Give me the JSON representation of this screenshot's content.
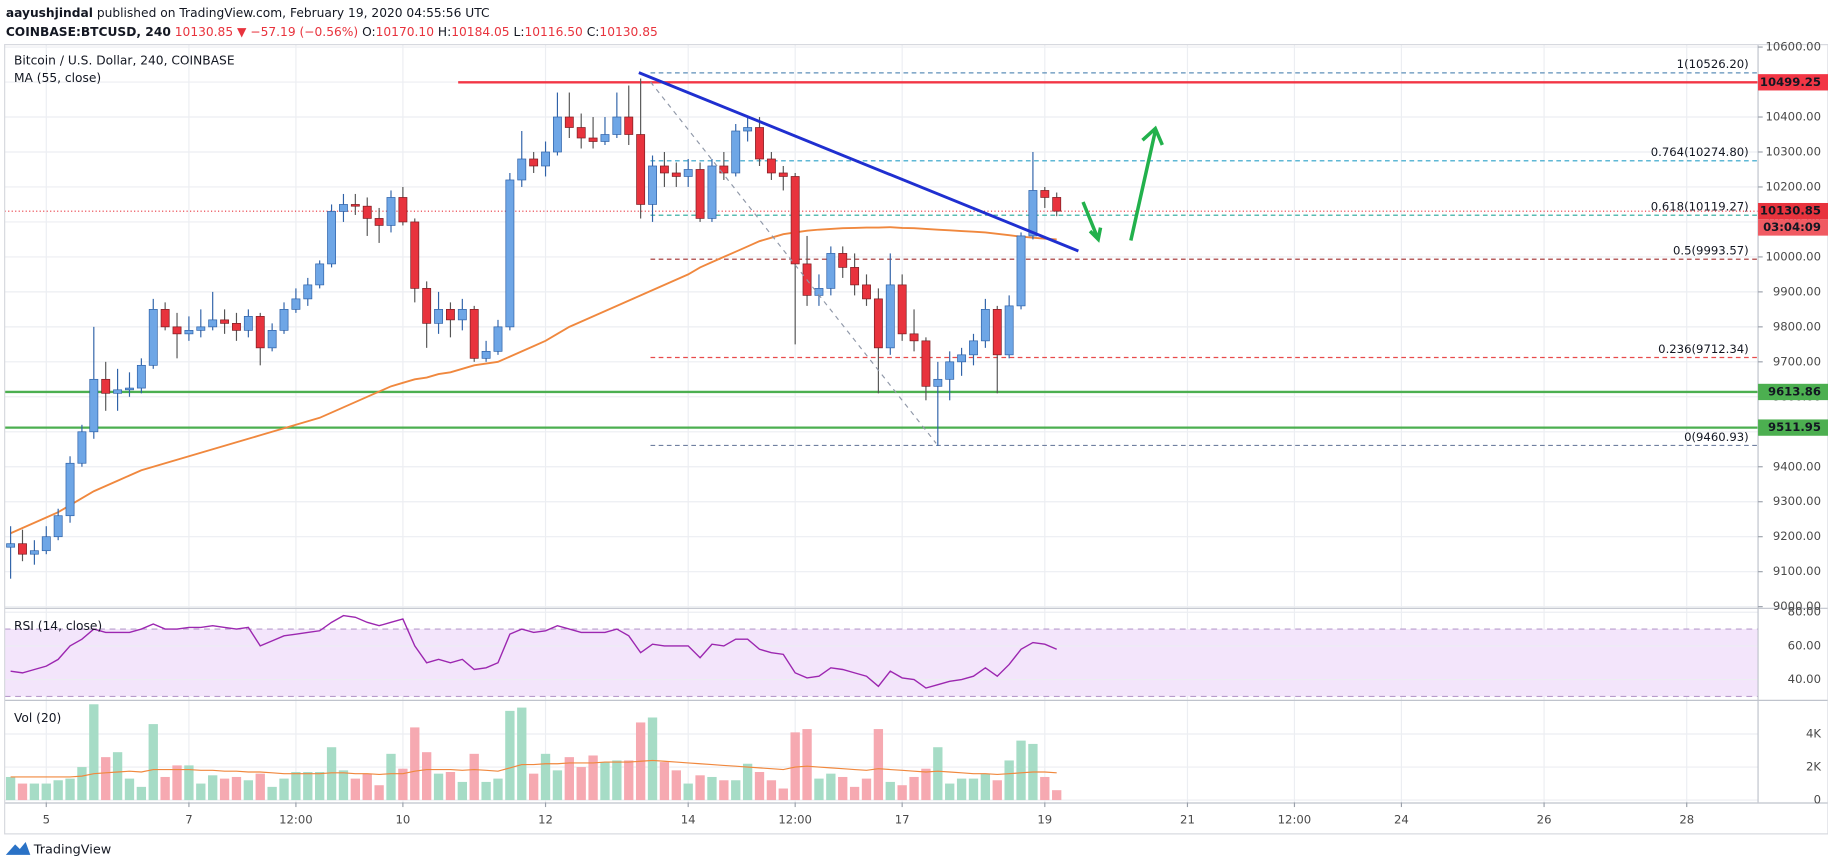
{
  "header": {
    "author": "aayushjindal",
    "published": "published on TradingView.com, February 19, 2020 04:55:56 UTC",
    "symbol": "COINBASE:BTCUSD, 240",
    "price": "10130.85",
    "change": "▼ −57.19 (−0.56%)",
    "ohlc": [
      {
        "key": "O:",
        "value": "10170.10"
      },
      {
        "key": "H:",
        "value": "10184.05"
      },
      {
        "key": "L:",
        "value": "10116.50"
      },
      {
        "key": "C:",
        "value": "10130.85"
      }
    ]
  },
  "footer": {
    "brand": "TradingView"
  },
  "chart_data": {
    "type": "candlestick",
    "title": "Bitcoin / U.S. Dollar, 240, COINBASE",
    "up_color": "#6ea6e6",
    "up_border": "#2f62a8",
    "down_color": "#e8333d",
    "grid": true,
    "x": [
      84,
      88,
      92,
      96,
      100,
      104,
      108,
      112,
      116,
      120,
      124,
      128,
      132,
      136,
      140,
      144,
      148,
      152,
      156,
      160,
      164,
      168,
      172,
      176,
      180,
      184,
      188,
      192,
      196,
      200,
      204,
      208,
      212,
      216,
      220,
      224,
      228,
      232,
      236,
      240,
      244,
      248,
      252,
      256,
      260,
      264,
      268,
      272,
      276,
      280,
      284,
      288,
      292,
      296,
      300,
      304,
      308,
      312,
      316,
      320,
      324,
      328,
      332,
      336,
      340,
      344,
      348,
      352,
      356,
      360,
      364,
      368,
      372,
      376,
      380,
      384,
      388,
      392,
      396,
      400,
      404,
      408,
      412,
      416,
      420,
      424,
      428,
      432,
      436
    ],
    "open": [
      9170,
      9180,
      9150,
      9160,
      9200,
      9260,
      9410,
      9500,
      9650,
      9610,
      9620,
      9625,
      9690,
      9850,
      9800,
      9780,
      9790,
      9800,
      9820,
      9810,
      9790,
      9830,
      9740,
      9790,
      9850,
      9880,
      9920,
      9980,
      10130,
      10150,
      10145,
      10110,
      10090,
      10170,
      10100,
      9910,
      9810,
      9850,
      9820,
      9850,
      9710,
      9730,
      9800,
      10220,
      10280,
      10260,
      10300,
      10400,
      10370,
      10340,
      10330,
      10350,
      10400,
      10350,
      10150,
      10260,
      10240,
      10230,
      10250,
      10110,
      10260,
      10240,
      10360,
      10370,
      10280,
      10240,
      10230,
      9980,
      9890,
      9910,
      10010,
      9970,
      9920,
      9880,
      9740,
      9920,
      9780,
      9760,
      9630,
      9650,
      9700,
      9720,
      9760,
      9850,
      9720,
      9860,
      10060,
      10190,
      10170.1
    ],
    "high": [
      9230,
      9220,
      9190,
      9230,
      9280,
      9430,
      9520,
      9800,
      9700,
      9680,
      9670,
      9710,
      9880,
      9870,
      9840,
      9830,
      9850,
      9900,
      9850,
      9840,
      9850,
      9840,
      9810,
      9870,
      9910,
      9940,
      9990,
      10150,
      10180,
      10180,
      10170,
      10140,
      10190,
      10200,
      10110,
      9930,
      9900,
      9870,
      9880,
      9860,
      9760,
      9820,
      10240,
      10360,
      10300,
      10330,
      10470,
      10470,
      10410,
      10400,
      10400,
      10470,
      10490,
      10510,
      10290,
      10300,
      10270,
      10280,
      10270,
      10280,
      10300,
      10380,
      10400,
      10400,
      10300,
      10260,
      10240,
      10060,
      9950,
      10030,
      10030,
      10010,
      9950,
      9910,
      10010,
      9950,
      9850,
      9770,
      9700,
      9730,
      9740,
      9780,
      9880,
      9860,
      9890,
      10070,
      10300,
      10200,
      10184.05
    ],
    "low": [
      9080,
      9130,
      9120,
      9150,
      9190,
      9240,
      9400,
      9480,
      9560,
      9560,
      9600,
      9610,
      9680,
      9790,
      9710,
      9760,
      9770,
      9790,
      9780,
      9760,
      9770,
      9690,
      9730,
      9780,
      9840,
      9860,
      9910,
      9970,
      10100,
      10120,
      10060,
      10040,
      10070,
      10090,
      9870,
      9740,
      9780,
      9770,
      9790,
      9700,
      9700,
      9720,
      9790,
      10200,
      10240,
      10230,
      10290,
      10340,
      10310,
      10310,
      10320,
      10340,
      10320,
      10110,
      10100,
      10200,
      10200,
      10200,
      10100,
      10100,
      10220,
      10230,
      10330,
      10260,
      10220,
      10190,
      9750,
      9860,
      9860,
      9890,
      9940,
      9890,
      9860,
      9610,
      9720,
      9760,
      9730,
      9590,
      9460,
      9590,
      9660,
      9690,
      9740,
      9610,
      9710,
      9850,
      10050,
      10140,
      10116.5
    ],
    "close": [
      9180,
      9150,
      9160,
      9200,
      9260,
      9410,
      9500,
      9650,
      9610,
      9620,
      9625,
      9690,
      9850,
      9800,
      9780,
      9790,
      9800,
      9820,
      9810,
      9790,
      9830,
      9740,
      9790,
      9850,
      9880,
      9920,
      9980,
      10130,
      10150,
      10145,
      10110,
      10090,
      10170,
      10100,
      9910,
      9810,
      9850,
      9820,
      9850,
      9710,
      9730,
      9800,
      10220,
      10280,
      10260,
      10300,
      10400,
      10370,
      10340,
      10330,
      10350,
      10400,
      10350,
      10150,
      10260,
      10240,
      10230,
      10250,
      10110,
      10260,
      10240,
      10360,
      10370,
      10280,
      10240,
      10230,
      9980,
      9890,
      9910,
      10010,
      9970,
      9920,
      9880,
      9740,
      9920,
      9780,
      9760,
      9630,
      9650,
      9700,
      9720,
      9760,
      9850,
      9720,
      9860,
      10060,
      10190,
      10170,
      10130.85
    ],
    "xlim": [
      82,
      672
    ],
    "xticks": [
      {
        "value": 96,
        "label": "5"
      },
      {
        "value": 144,
        "label": "7"
      },
      {
        "value": 180,
        "label": "12:00"
      },
      {
        "value": 216,
        "label": "10"
      },
      {
        "value": 264,
        "label": "12"
      },
      {
        "value": 312,
        "label": "14"
      },
      {
        "value": 348,
        "label": "12:00"
      },
      {
        "value": 384,
        "label": "17"
      },
      {
        "value": 432,
        "label": "19"
      },
      {
        "value": 480,
        "label": "21"
      },
      {
        "value": 516,
        "label": "12:00"
      },
      {
        "value": 552,
        "label": "24"
      },
      {
        "value": 600,
        "label": "26"
      },
      {
        "value": 648,
        "label": "28"
      }
    ],
    "ylim": [
      8997,
      10607
    ],
    "yticks": [
      {
        "value": 10600,
        "label": "10600.00"
      },
      {
        "value": 10500,
        "label": "10500.00"
      },
      {
        "value": 10400,
        "label": "10400.00"
      },
      {
        "value": 10300,
        "label": "10300.00"
      },
      {
        "value": 10200,
        "label": "10200.00"
      },
      {
        "value": 10100,
        "label": "10100.00"
      },
      {
        "value": 10000,
        "label": "10000.00"
      },
      {
        "value": 9900,
        "label": "9900.00"
      },
      {
        "value": 9800,
        "label": "9800.00"
      },
      {
        "value": 9700,
        "label": "9700.00"
      },
      {
        "value": 9600,
        "label": "9600.00"
      },
      {
        "value": 9500,
        "label": "9500.00"
      },
      {
        "value": 9400,
        "label": "9400.00"
      },
      {
        "value": 9300,
        "label": "9300.00"
      },
      {
        "value": 9200,
        "label": "9200.00"
      },
      {
        "value": 9100,
        "label": "9100.00"
      },
      {
        "value": 9000,
        "label": "9000.00"
      }
    ],
    "ma": {
      "name": "MA (55, close)",
      "color": "#f0883e",
      "values": [
        9210,
        9225,
        9240,
        9255,
        9270,
        9290,
        9310,
        9330,
        9345,
        9360,
        9375,
        9390,
        9400,
        9410,
        9420,
        9430,
        9440,
        9450,
        9460,
        9470,
        9480,
        9490,
        9500,
        9510,
        9520,
        9530,
        9540,
        9555,
        9570,
        9585,
        9600,
        9615,
        9630,
        9640,
        9650,
        9655,
        9665,
        9670,
        9680,
        9690,
        9695,
        9700,
        9715,
        9730,
        9745,
        9760,
        9780,
        9800,
        9815,
        9830,
        9845,
        9860,
        9875,
        9890,
        9905,
        9920,
        9935,
        9950,
        9970,
        9985,
        10000,
        10015,
        10030,
        10045,
        10055,
        10065,
        10070,
        10075,
        10078,
        10080,
        10082,
        10083,
        10084,
        10084,
        10085,
        10083,
        10082,
        10080,
        10078,
        10076,
        10074,
        10072,
        10070,
        10066,
        10062,
        10058,
        10055,
        10052,
        10050
      ]
    },
    "levels": [
      {
        "value": 10499.25,
        "color": "#f23645"
      },
      {
        "value": 9613.86,
        "color": "#4caf50"
      },
      {
        "value": 9511.95,
        "color": "#4caf50"
      }
    ],
    "countdown": "03:04:09",
    "fib": [
      {
        "label": "1(10526.20)",
        "value": 10526.2,
        "color": "#5e8fb8"
      },
      {
        "label": "0.764(10274.80)",
        "value": 10274.8,
        "color": "#2aa0c7"
      },
      {
        "label": "0.618(10119.27)",
        "value": 10119.27,
        "color": "#26a69a"
      },
      {
        "label": "0.5(9993.57)",
        "value": 9993.57,
        "color": "#a12c2c"
      },
      {
        "label": "0.236(9712.34)",
        "value": 9712.34,
        "color": "#e84b4b"
      },
      {
        "label": "0(9460.93)",
        "value": 9460.93,
        "color": "#7080a0"
      }
    ],
    "rsi": {
      "name": "RSI (14, close)",
      "color": "#9c27b0",
      "ylim": [
        28,
        82
      ],
      "yticks": [
        {
          "value": 80,
          "label": "80.00"
        },
        {
          "value": 60,
          "label": "60.00"
        },
        {
          "value": 40,
          "label": "40.00"
        }
      ],
      "bands": [
        30,
        70
      ],
      "values": [
        45,
        44,
        46,
        48,
        52,
        60,
        64,
        70,
        68,
        68,
        68,
        70,
        73,
        70,
        70,
        71,
        71,
        72,
        71,
        70,
        71,
        60,
        63,
        66,
        67,
        68,
        69,
        74,
        78,
        77,
        74,
        72,
        74,
        76,
        60,
        50,
        52,
        50,
        52,
        46,
        47,
        50,
        67,
        70,
        68,
        69,
        72,
        70,
        68,
        68,
        68,
        70,
        66,
        56,
        61,
        60,
        60,
        60,
        53,
        61,
        60,
        64,
        64,
        58,
        56,
        55,
        44,
        41,
        42,
        47,
        46,
        44,
        42,
        36,
        45,
        41,
        40,
        35,
        37,
        39,
        40,
        42,
        47,
        42,
        49,
        58,
        62,
        61,
        58
      ]
    },
    "volume": {
      "name": "Vol (20)",
      "up_color": "#a6dcc6",
      "down_color": "#f6a9b1",
      "ma_color": "#f0883e",
      "ylim": [
        -140,
        6000
      ],
      "yticks": [
        {
          "value": 4000,
          "label": "4K"
        },
        {
          "value": 2000,
          "label": "2K"
        },
        0
      ],
      "values": [
        1400,
        1000,
        1000,
        1000,
        1200,
        1300,
        2000,
        5800,
        2600,
        2900,
        1300,
        800,
        4600,
        1400,
        2100,
        2100,
        1000,
        1500,
        1300,
        1400,
        1200,
        1600,
        800,
        1300,
        1700,
        1700,
        1700,
        3200,
        1800,
        1300,
        1600,
        900,
        2800,
        1900,
        4400,
        2900,
        1600,
        1700,
        1100,
        2800,
        1100,
        1300,
        5400,
        5600,
        1600,
        2800,
        1800,
        2600,
        2000,
        2700,
        2300,
        2400,
        2400,
        4700,
        5000,
        2300,
        1800,
        1000,
        1500,
        1400,
        1200,
        1200,
        2200,
        1700,
        1200,
        700,
        4100,
        4300,
        1300,
        1600,
        1400,
        800,
        1300,
        4300,
        1100,
        900,
        1400,
        1900,
        3200,
        1000,
        1300,
        1300,
        1600,
        1200,
        2400,
        3600,
        3400,
        1400,
        600
      ],
      "ma": [
        1400,
        1400,
        1400,
        1400,
        1400,
        1400,
        1450,
        1600,
        1650,
        1700,
        1750,
        1700,
        1850,
        1850,
        1850,
        1850,
        1800,
        1800,
        1750,
        1750,
        1700,
        1700,
        1650,
        1600,
        1600,
        1600,
        1600,
        1650,
        1650,
        1600,
        1600,
        1550,
        1600,
        1600,
        1750,
        1850,
        1850,
        1850,
        1800,
        1850,
        1800,
        1750,
        1950,
        2150,
        2150,
        2200,
        2200,
        2250,
        2250,
        2250,
        2300,
        2300,
        2300,
        2350,
        2400,
        2350,
        2300,
        2250,
        2200,
        2150,
        2100,
        2050,
        2000,
        1950,
        1900,
        1850,
        2000,
        2050,
        2000,
        1950,
        1900,
        1850,
        1800,
        1900,
        1850,
        1800,
        1750,
        1700,
        1750,
        1700,
        1650,
        1600,
        1600,
        1550,
        1600,
        1650,
        1700,
        1700,
        1650
      ]
    }
  }
}
